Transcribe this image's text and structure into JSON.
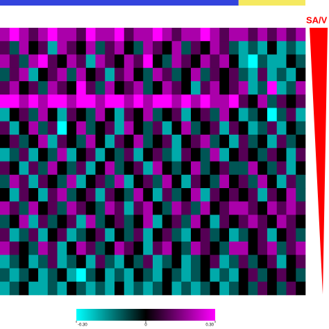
{
  "chart_data": {
    "type": "heatmap",
    "label": "SA/V",
    "column_groups": [
      {
        "color": "#3344dd",
        "count": 25
      },
      {
        "color": "#f5e960",
        "count": 7
      }
    ],
    "colorscale": [
      "#00ffff",
      "#000000",
      "#ff00ff"
    ],
    "zlim": [
      -0.3,
      0.3
    ],
    "colorbar_ticks": [
      {
        "value": -0.3,
        "label": "-0.30"
      },
      0,
      {
        "value": 0.3,
        "label": "0.30"
      }
    ],
    "values": [
      [
        0.2,
        0.3,
        0.2,
        0.1,
        0.2,
        0.3,
        0.2,
        0.2,
        0.1,
        0.3,
        0.2,
        0.2,
        0.3,
        0.1,
        0.2,
        0.2,
        0.3,
        0.2,
        0.1,
        0.2,
        0.2,
        0.3,
        0.2,
        0.1,
        0.2,
        0.2,
        0.1,
        0.2,
        0.1,
        0.2,
        0.1,
        0.2
      ],
      [
        0.1,
        -0.1,
        0.2,
        0,
        0.1,
        -0.2,
        0.2,
        0.1,
        0,
        0.2,
        -0.1,
        0.1,
        0.2,
        0,
        -0.1,
        0.2,
        0.1,
        0,
        0.2,
        -0.1,
        0.1,
        0,
        0.2,
        0.1,
        -0.1,
        -0.2,
        -0.1,
        -0.2,
        0,
        -0.2,
        -0.1,
        -0.2
      ],
      [
        0.2,
        0.1,
        -0.1,
        0.2,
        0.3,
        0.1,
        0,
        0.2,
        0.1,
        -0.2,
        0.2,
        0.1,
        0,
        0.2,
        0.1,
        0.3,
        0,
        -0.1,
        0.2,
        0.1,
        0,
        0.2,
        0.1,
        0.2,
        0,
        -0.2,
        -0.3,
        -0.1,
        -0.2,
        -0.2,
        0,
        -0.1
      ],
      [
        -0.1,
        0.1,
        0.2,
        -0.2,
        0,
        0.1,
        0.2,
        -0.1,
        0.2,
        0,
        0.1,
        -0.2,
        0.1,
        0.2,
        0,
        -0.1,
        0.2,
        0.1,
        -0.1,
        0,
        0.2,
        -0.1,
        0.1,
        0,
        0.1,
        -0.1,
        -0.2,
        0.1,
        -0.2,
        -0.1,
        -0.2,
        0
      ],
      [
        0.1,
        0.2,
        0,
        0.1,
        -0.1,
        0.2,
        0.1,
        0,
        0.3,
        0.1,
        -0.1,
        0.2,
        0,
        0.1,
        0.2,
        -0.1,
        0,
        0.2,
        0.1,
        0,
        -0.2,
        0.1,
        0.2,
        0,
        0.1,
        0.2,
        -0.2,
        -0.1,
        0.3,
        -0.2,
        -0.1,
        0.2
      ],
      [
        0.3,
        0.3,
        0.2,
        0.3,
        0.2,
        0.3,
        0.3,
        0.2,
        0.3,
        0.3,
        0.2,
        0.3,
        0.3,
        0.2,
        0.3,
        0.2,
        0.3,
        0.3,
        0.2,
        0.3,
        0.2,
        0.3,
        0.2,
        0.2,
        0.3,
        0.1,
        0,
        0.2,
        -0.1,
        0.1,
        0,
        0.1
      ],
      [
        -0.2,
        0,
        0.1,
        -0.1,
        0.2,
        0,
        -0.2,
        0.1,
        0,
        -0.1,
        0.2,
        0,
        -0.2,
        0.1,
        0,
        0.2,
        -0.1,
        0,
        0.1,
        -0.2,
        0,
        0.1,
        -0.1,
        0.2,
        0,
        -0.2,
        -0.1,
        0,
        -0.3,
        -0.1,
        0.1,
        -0.2
      ],
      [
        0.1,
        -0.2,
        0,
        0.2,
        -0.1,
        0.1,
        -0.3,
        0,
        0.2,
        -0.1,
        0,
        0.1,
        -0.2,
        0.2,
        0,
        -0.1,
        0.1,
        -0.2,
        0,
        0.2,
        -0.1,
        0,
        0.1,
        -0.2,
        0.1,
        0,
        -0.2,
        -0.1,
        0.1,
        -0.2,
        0,
        -0.1
      ],
      [
        0,
        0.1,
        -0.1,
        0,
        0.2,
        -0.2,
        0.1,
        0,
        -0.1,
        0.2,
        0,
        -0.2,
        0.1,
        0,
        0.2,
        -0.1,
        0,
        0.1,
        -0.2,
        0,
        0.1,
        0.2,
        -0.1,
        0,
        -0.2,
        0.1,
        -0.1,
        0,
        -0.2,
        0.1,
        -0.1,
        0
      ],
      [
        -0.2,
        -0.1,
        0.1,
        -0.2,
        0,
        -0.1,
        0.2,
        -0.2,
        0,
        0.1,
        -0.2,
        0,
        -0.1,
        0.1,
        -0.2,
        0,
        0.1,
        -0.1,
        -0.2,
        0.1,
        0,
        -0.1,
        0.2,
        -0.2,
        0,
        0.1,
        0,
        -0.1,
        0.1,
        0,
        -0.2,
        0.1
      ],
      [
        0.1,
        0,
        -0.2,
        0.1,
        -0.1,
        0.2,
        0,
        -0.1,
        0.1,
        -0.2,
        0,
        0.2,
        -0.1,
        0,
        0.1,
        -0.2,
        0.2,
        0,
        -0.1,
        0,
        0.2,
        -0.1,
        0,
        0.1,
        -0.1,
        -0.1,
        0.2,
        0,
        -0.1,
        0.1,
        -0.2,
        0
      ],
      [
        -0.1,
        0.2,
        0.1,
        -0.2,
        0.1,
        0,
        -0.1,
        0.2,
        -0.2,
        0,
        0.1,
        -0.1,
        0.2,
        -0.2,
        0,
        0.1,
        -0.1,
        0.2,
        0,
        -0.2,
        0.1,
        0,
        -0.1,
        0.2,
        0,
        0.1,
        -0.1,
        0.2,
        0,
        -0.2,
        0.1,
        -0.1
      ],
      [
        0,
        -0.2,
        0.1,
        0,
        -0.2,
        0.1,
        0.2,
        -0.1,
        0,
        0.1,
        -0.2,
        0.1,
        0,
        -0.1,
        0.2,
        0,
        -0.2,
        0.1,
        -0.1,
        0,
        0.2,
        -0.2,
        0.1,
        0,
        0.1,
        0,
        0.1,
        -0.2,
        0.1,
        0,
        0.2,
        -0.1
      ],
      [
        0.2,
        0.1,
        -0.1,
        0.2,
        0,
        0.1,
        -0.1,
        0.2,
        0.1,
        0,
        -0.1,
        0.2,
        0.1,
        -0.2,
        0.1,
        0.2,
        0,
        -0.1,
        0.2,
        0.1,
        -0.1,
        0.2,
        0,
        0.1,
        0.2,
        0.2,
        0.1,
        0,
        0.2,
        0.1,
        0.2,
        0.1
      ],
      [
        -0.1,
        0,
        0.2,
        -0.2,
        0.1,
        -0.1,
        0,
        0.1,
        -0.2,
        0.2,
        -0.1,
        0,
        0.1,
        -0.1,
        0,
        0.2,
        -0.2,
        0,
        0.1,
        -0.1,
        0.2,
        0,
        -0.2,
        0.1,
        0,
        0.1,
        0.2,
        0.1,
        0,
        0.2,
        0.1,
        0
      ],
      [
        0.1,
        -0.2,
        -0.1,
        0.1,
        -0.2,
        0,
        0.1,
        -0.2,
        -0.1,
        0,
        0.1,
        -0.2,
        0,
        -0.1,
        0.1,
        -0.2,
        0,
        0.1,
        -0.1,
        -0.2,
        0,
        0.1,
        -0.1,
        0,
        -0.2,
        -0.1,
        0,
        0.1,
        -0.2,
        0,
        0.1,
        -0.1
      ],
      [
        0.2,
        0.1,
        0,
        -0.1,
        0.2,
        0.1,
        -0.2,
        0,
        0.2,
        0.1,
        -0.1,
        0,
        0.2,
        0.1,
        0,
        -0.2,
        0.1,
        0.2,
        0,
        -0.1,
        0.2,
        0.1,
        0,
        -0.1,
        0.2,
        0.2,
        0,
        0.1,
        0.2,
        -0.1,
        0.1,
        0.2
      ],
      [
        -0.2,
        -0.1,
        0,
        -0.2,
        -0.1,
        0.1,
        -0.2,
        -0.1,
        0,
        -0.2,
        0.1,
        -0.1,
        -0.2,
        0,
        -0.1,
        0.1,
        -0.2,
        -0.1,
        0,
        -0.2,
        -0.1,
        0,
        0.1,
        -0.2,
        -0.1,
        0.1,
        -0.1,
        0,
        0.1,
        -0.2,
        0,
        0.1
      ],
      [
        -0.1,
        -0.2,
        -0.1,
        0,
        -0.2,
        -0.1,
        0,
        -0.2,
        -0.3,
        -0.1,
        0,
        -0.2,
        -0.1,
        -0.2,
        0,
        -0.1,
        -0.2,
        0,
        -0.1,
        -0.2,
        -0.1,
        0,
        -0.2,
        -0.1,
        -0.2,
        0,
        0.1,
        -0.1,
        0,
        0.1,
        0,
        -0.1
      ],
      [
        -0.2,
        -0.1,
        0,
        -0.2,
        -0.2,
        -0.1,
        -0.2,
        0,
        -0.1,
        -0.2,
        -0.1,
        -0.2,
        0,
        -0.2,
        -0.1,
        -0.2,
        -0.1,
        0,
        -0.2,
        -0.1,
        -0.2,
        -0.1,
        0,
        -0.2,
        -0.1,
        0,
        -0.1,
        0.1,
        0,
        -0.1,
        0.1,
        0
      ]
    ]
  }
}
